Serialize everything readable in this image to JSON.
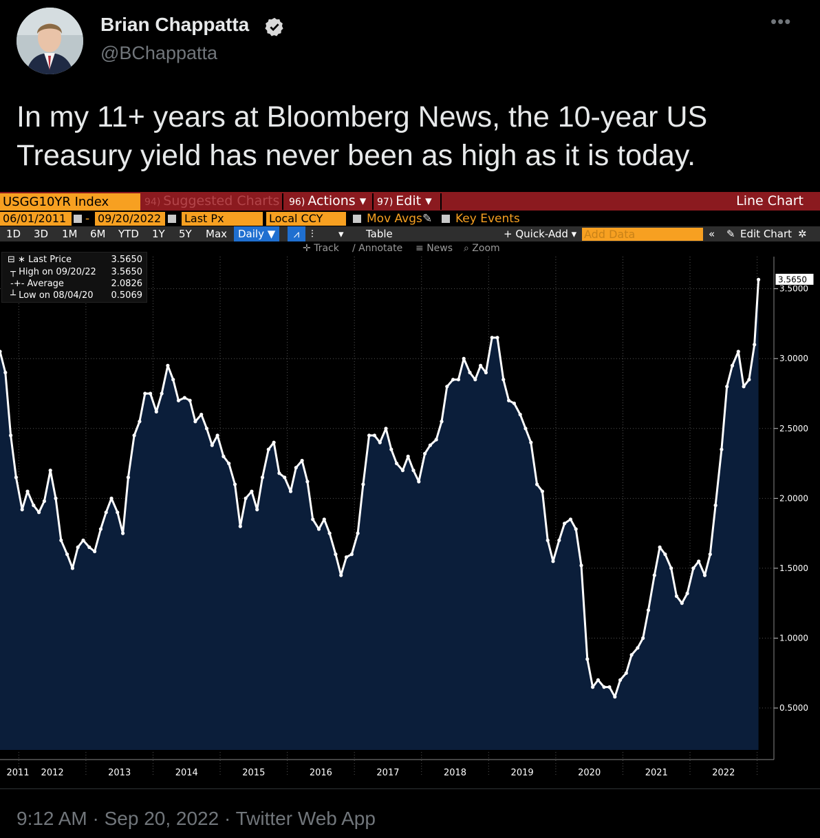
{
  "tweet": {
    "author_name": "Brian Chappatta",
    "handle": "@BChappatta",
    "text": "In my 11+ years at Bloomberg News, the 10-year US Treasury yield has never been as high as it is today.",
    "timestamp": "9:12 AM · Sep 20, 2022 · Twitter Web App",
    "more_icon": "more-icon",
    "verified_icon": "verified-badge-icon"
  },
  "terminal": {
    "ticker": "USGG10YR Index",
    "suggested": "Suggested Charts",
    "suggested_num": "94)",
    "actions": "Actions ▾",
    "actions_num": "96)",
    "edit": "Edit ▾",
    "edit_num": "97)",
    "chart_kind": "Line Chart",
    "start_date": "06/01/2011",
    "end_date": "09/20/2022",
    "dash": "-",
    "field": "Last Px",
    "currency": "Local CCY",
    "mov_avgs": "Mov Avgs",
    "key_events": "Key Events",
    "periods": [
      "1D",
      "3D",
      "1M",
      "6M",
      "YTD",
      "1Y",
      "5Y",
      "Max"
    ],
    "frequency": "Daily ▼",
    "table": "Table",
    "quick_add": "+ Quick-Add ▾",
    "add_data_placeholder": "Add Data",
    "edit_chart": "Edit Chart",
    "tools": [
      "Track",
      "Annotate",
      "News",
      "Zoom"
    ],
    "legend": [
      {
        "label": "Last Price",
        "value": "3.5650"
      },
      {
        "label": "High on 09/20/22",
        "value": "3.5650"
      },
      {
        "label": "Average",
        "value": "2.0826"
      },
      {
        "label": "Low on 08/04/20",
        "value": "0.5069"
      }
    ],
    "last_value_tag": "3.5650"
  },
  "chart_data": {
    "type": "area",
    "series": [
      {
        "name": "Last Price",
        "color": "#ffffff",
        "fill": "#0b1e3a",
        "x": [
          2011.42,
          2011.5,
          2011.58,
          2011.66,
          2011.75,
          2011.83,
          2011.92,
          2012.0,
          2012.08,
          2012.17,
          2012.25,
          2012.33,
          2012.42,
          2012.5,
          2012.58,
          2012.66,
          2012.75,
          2012.83,
          2012.92,
          2013.0,
          2013.08,
          2013.17,
          2013.25,
          2013.33,
          2013.42,
          2013.5,
          2013.58,
          2013.66,
          2013.75,
          2013.83,
          2013.92,
          2014.0,
          2014.08,
          2014.17,
          2014.25,
          2014.33,
          2014.42,
          2014.5,
          2014.58,
          2014.66,
          2014.75,
          2014.83,
          2014.92,
          2015.0,
          2015.08,
          2015.17,
          2015.25,
          2015.33,
          2015.42,
          2015.5,
          2015.58,
          2015.66,
          2015.75,
          2015.83,
          2015.92,
          2016.0,
          2016.08,
          2016.17,
          2016.25,
          2016.33,
          2016.42,
          2016.5,
          2016.58,
          2016.66,
          2016.75,
          2016.83,
          2016.92,
          2017.0,
          2017.08,
          2017.17,
          2017.25,
          2017.33,
          2017.42,
          2017.5,
          2017.58,
          2017.66,
          2017.75,
          2017.83,
          2017.92,
          2018.0,
          2018.08,
          2018.17,
          2018.25,
          2018.33,
          2018.42,
          2018.5,
          2018.58,
          2018.66,
          2018.75,
          2018.83,
          2018.92,
          2019.0,
          2019.08,
          2019.17,
          2019.25,
          2019.33,
          2019.42,
          2019.5,
          2019.58,
          2019.66,
          2019.75,
          2019.83,
          2019.92,
          2020.0,
          2020.08,
          2020.17,
          2020.25,
          2020.33,
          2020.42,
          2020.5,
          2020.58,
          2020.66,
          2020.75,
          2020.83,
          2020.92,
          2021.0,
          2021.08,
          2021.17,
          2021.25,
          2021.33,
          2021.42,
          2021.5,
          2021.58,
          2021.66,
          2021.75,
          2021.83,
          2021.92,
          2022.0,
          2022.08,
          2022.17,
          2022.25,
          2022.33,
          2022.42,
          2022.5,
          2022.58,
          2022.66,
          2022.72
        ],
        "values": [
          3.05,
          2.9,
          2.45,
          2.15,
          1.92,
          2.05,
          1.95,
          1.9,
          1.98,
          2.2,
          2.0,
          1.7,
          1.6,
          1.5,
          1.65,
          1.7,
          1.65,
          1.62,
          1.78,
          1.9,
          2.0,
          1.9,
          1.75,
          2.15,
          2.45,
          2.55,
          2.75,
          2.75,
          2.62,
          2.75,
          2.95,
          2.85,
          2.7,
          2.72,
          2.7,
          2.55,
          2.6,
          2.5,
          2.38,
          2.45,
          2.3,
          2.25,
          2.1,
          1.8,
          2.0,
          2.05,
          1.92,
          2.15,
          2.35,
          2.4,
          2.18,
          2.15,
          2.05,
          2.22,
          2.27,
          2.12,
          1.85,
          1.78,
          1.85,
          1.75,
          1.6,
          1.45,
          1.58,
          1.6,
          1.75,
          2.1,
          2.45,
          2.45,
          2.4,
          2.5,
          2.35,
          2.25,
          2.2,
          2.3,
          2.2,
          2.12,
          2.32,
          2.38,
          2.42,
          2.55,
          2.8,
          2.85,
          2.85,
          3.0,
          2.9,
          2.85,
          2.95,
          2.9,
          3.15,
          3.15,
          2.85,
          2.7,
          2.68,
          2.6,
          2.5,
          2.4,
          2.1,
          2.05,
          1.7,
          1.55,
          1.7,
          1.82,
          1.85,
          1.78,
          1.52,
          0.85,
          0.65,
          0.7,
          0.65,
          0.65,
          0.58,
          0.7,
          0.75,
          0.88,
          0.93,
          1.0,
          1.2,
          1.45,
          1.65,
          1.6,
          1.5,
          1.3,
          1.25,
          1.32,
          1.5,
          1.55,
          1.45,
          1.6,
          1.95,
          2.35,
          2.8,
          2.95,
          3.05,
          2.8,
          2.85,
          3.1,
          3.565
        ]
      }
    ],
    "x_tick_labels": [
      "2011",
      "2012",
      "2013",
      "2014",
      "2015",
      "2016",
      "2017",
      "2018",
      "2019",
      "2020",
      "2021",
      "2022"
    ],
    "y_tick_labels": [
      "0.5000",
      "1.0000",
      "1.5000",
      "2.0000",
      "2.5000",
      "3.0000",
      "3.5000"
    ],
    "ylim": [
      0.2,
      3.7
    ],
    "xlim": [
      2011.42,
      2022.95
    ],
    "grid": true,
    "grid_style": "dotted"
  }
}
